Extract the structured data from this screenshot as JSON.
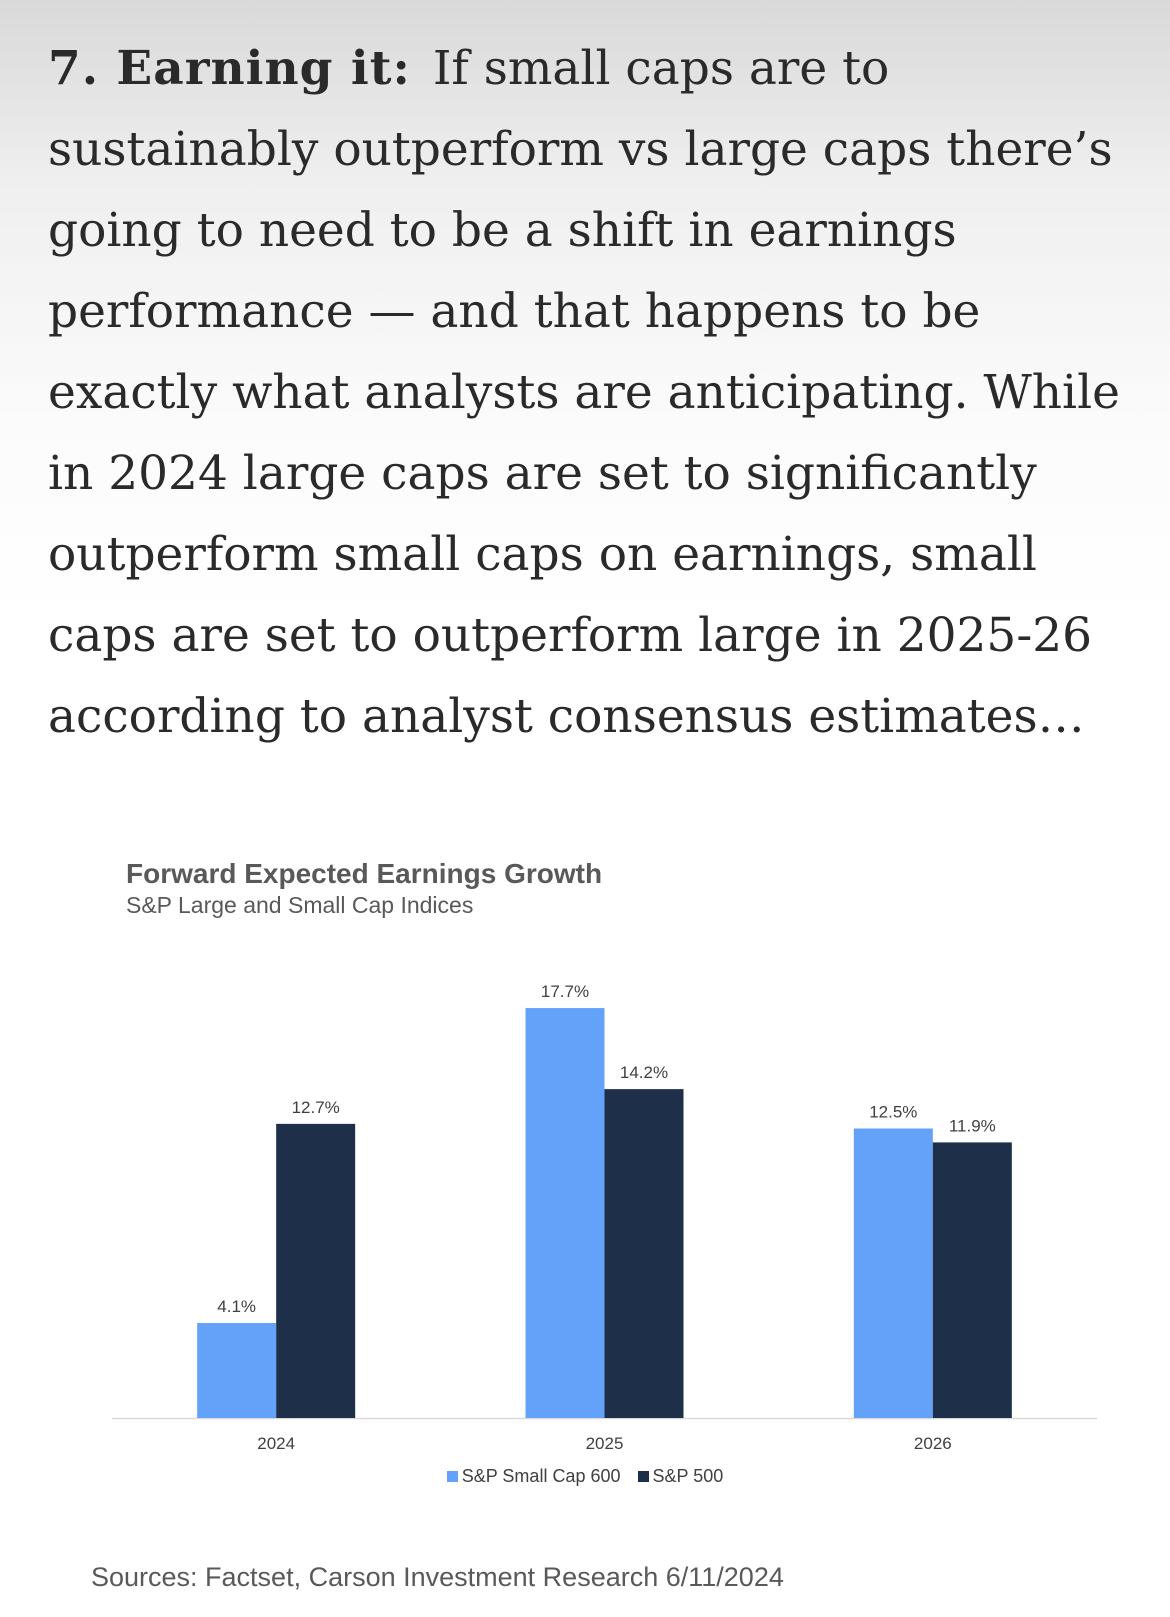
{
  "article": {
    "lead": "7. Earning it:",
    "body": "If small caps are to sustainably outperform vs large caps there’s going to need to be a shift in earnings performance — and that happens to be exactly what analysts are anticipating. While in 2024 large caps are set to significantly outperform small caps on earnings, small caps are set to outperform large in 2025-26 according to analyst consensus estimates…"
  },
  "chart_data": {
    "type": "bar",
    "title": "Forward Expected Earnings Growth",
    "subtitle": "S&P Large and Small Cap Indices",
    "categories": [
      "2024",
      "2025",
      "2026"
    ],
    "series": [
      {
        "name": "S&P Small Cap 600",
        "color": "#64a1f9",
        "values": [
          4.1,
          17.7,
          12.5
        ],
        "labels": [
          "4.1%",
          "17.7%",
          "12.5%"
        ]
      },
      {
        "name": "S&P 500",
        "color": "#1e2f4a",
        "values": [
          12.7,
          14.2,
          11.9
        ],
        "labels": [
          "12.7%",
          "14.2%",
          "11.9%"
        ]
      }
    ],
    "value_unit": "%",
    "ylim": [
      0,
      19
    ],
    "yaxis_visible": false,
    "grid": false,
    "legend_position": "bottom"
  },
  "source": "Sources: Factset, Carson Investment Research 6/11/2024"
}
